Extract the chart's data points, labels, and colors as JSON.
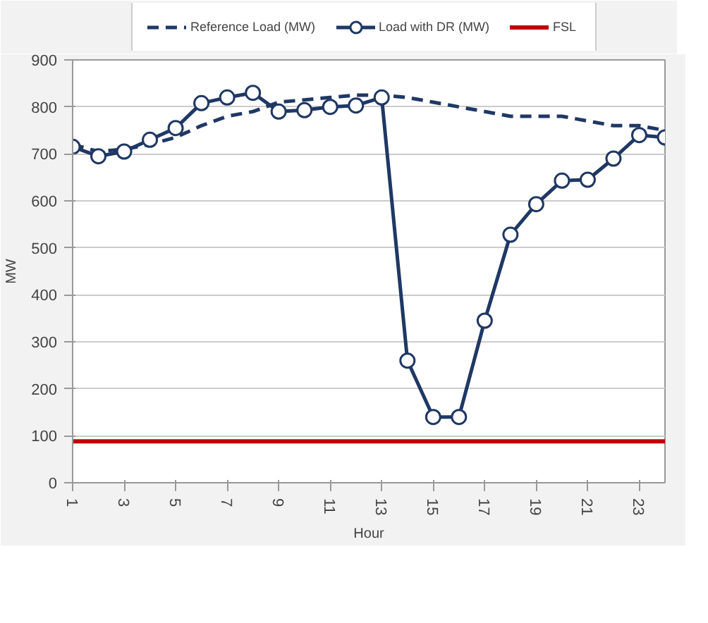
{
  "chart_data": {
    "type": "line",
    "xlabel": "Hour",
    "ylabel": "MW",
    "x": [
      1,
      2,
      3,
      4,
      5,
      6,
      7,
      8,
      9,
      10,
      11,
      12,
      13,
      14,
      15,
      16,
      17,
      18,
      19,
      20,
      21,
      22,
      23,
      24
    ],
    "series": [
      {
        "name": "Reference Load (MW)",
        "color": "#1f3864",
        "line_style": "dashed",
        "marker": "none",
        "values": [
          720,
          705,
          710,
          720,
          735,
          760,
          780,
          790,
          810,
          815,
          820,
          825,
          825,
          820,
          810,
          800,
          790,
          780,
          780,
          780,
          770,
          760,
          760,
          750
        ]
      },
      {
        "name": "Load with DR (MW)",
        "color": "#1f3864",
        "line_style": "solid",
        "marker": "circle",
        "values": [
          715,
          695,
          705,
          730,
          755,
          808,
          820,
          830,
          790,
          793,
          800,
          803,
          820,
          260,
          140,
          140,
          345,
          528,
          593,
          643,
          645,
          690,
          740,
          735
        ]
      }
    ],
    "ref_lines": [
      {
        "axis": "y",
        "value": 88,
        "label": "FSL",
        "color": "#c00000",
        "line_style": "solid"
      }
    ],
    "xlim": [
      1,
      24
    ],
    "xticks": [
      1,
      3,
      5,
      7,
      9,
      11,
      13,
      15,
      17,
      19,
      21,
      23
    ],
    "ylim": [
      0,
      900
    ],
    "yticks": [
      0,
      100,
      200,
      300,
      400,
      500,
      600,
      700,
      800,
      900
    ],
    "grid": "y",
    "legend": "top"
  }
}
